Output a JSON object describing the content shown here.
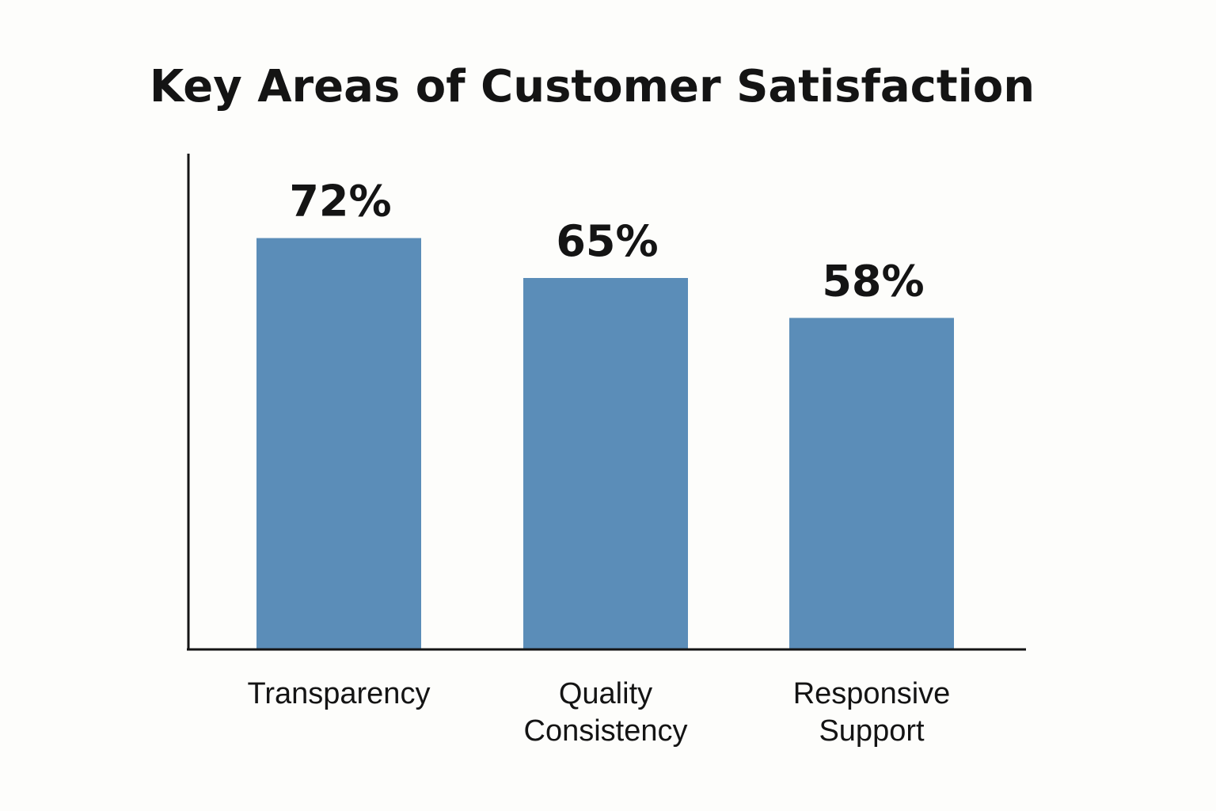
{
  "chart_data": {
    "type": "bar",
    "title": "Key Areas of Customer Satisfaction",
    "xlabel": "",
    "ylabel": "",
    "categories": [
      "Transparency",
      "Quality Consistency",
      "Responsive Support"
    ],
    "category_lines": [
      [
        "Transparency"
      ],
      [
        "Quality",
        "Consistency"
      ],
      [
        "Responsive",
        "Support"
      ]
    ],
    "values": [
      72,
      65,
      58
    ],
    "value_labels": [
      "72%",
      "65%",
      "58%"
    ],
    "ylim": [
      0,
      100
    ],
    "grid": false,
    "legend": "none",
    "bar_color": "#5b8db8",
    "axis_color": "#141414"
  }
}
